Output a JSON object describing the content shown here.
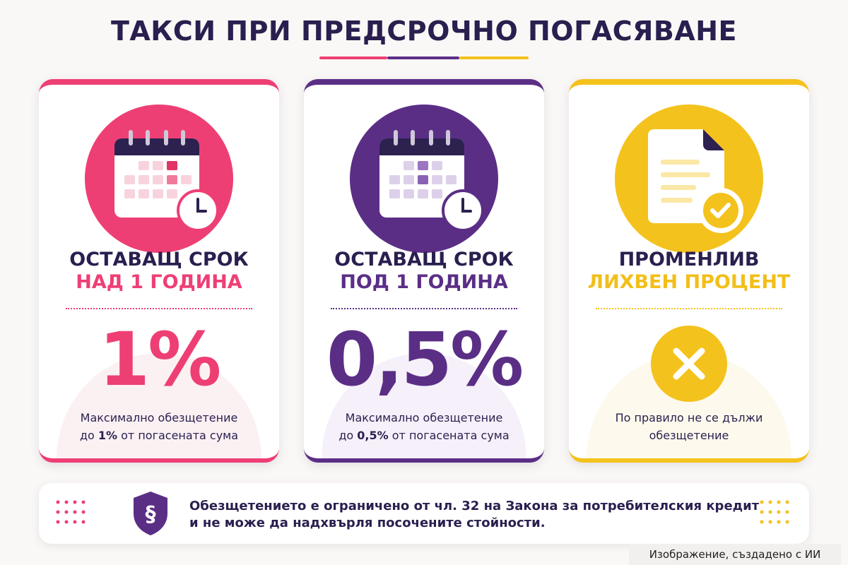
{
  "header": {
    "title": "ТАКСИ ПРИ ПРЕДСРОЧНО ПОГАСЯВАНЕ"
  },
  "cards": [
    {
      "heading": "ОСТАВАЩ СРОК",
      "subheading": "НАД 1 ГОДИНА",
      "value": "1%",
      "description": [
        [
          "Максимално обезщетение"
        ],
        [
          "до ",
          "1%",
          " от погасената сума"
        ]
      ]
    },
    {
      "heading": "ОСТАВАЩ СРОК",
      "subheading": "ПОД 1 ГОДИНА",
      "value": "0,5%",
      "description": [
        [
          "Максимално обезщетение"
        ],
        [
          "до ",
          "0,5%",
          " от погасената сума"
        ]
      ]
    },
    {
      "heading": "ПРОМЕНЛИВ",
      "subheading": "ЛИХВЕН ПРОЦЕНТ",
      "description": [
        [
          "По правило не се дължи"
        ],
        [
          "обезщетение"
        ]
      ]
    }
  ],
  "footer": {
    "lines": [
      "Обезщетението е ограничено от чл. 32 на Закона за потребителския кредит",
      "и не може да надхвърля посочените стойности."
    ]
  },
  "watermark": "Изображение, създадено с ИИ"
}
